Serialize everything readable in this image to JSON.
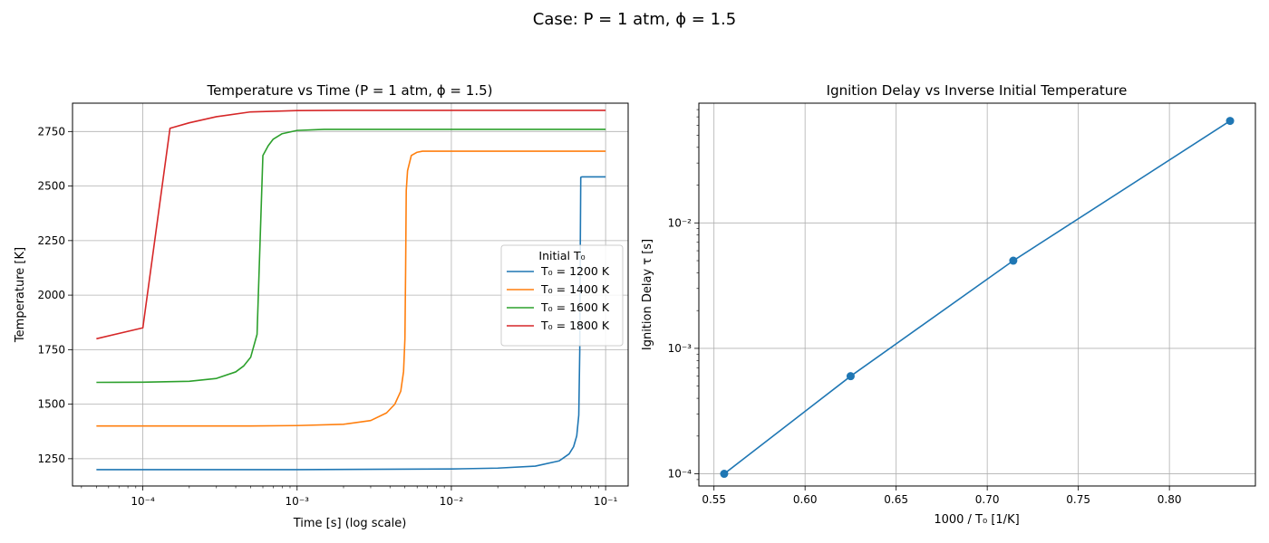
{
  "figure": {
    "suptitle": "Case: P = 1 atm, ϕ = 1.5"
  },
  "chart_data": [
    {
      "type": "line",
      "title": "Temperature vs Time (P = 1 atm, ϕ = 1.5)",
      "xlabel": "Time [s] (log scale)",
      "ylabel": "Temperature [K]",
      "xscale": "log",
      "xlim": [
        3.5e-05,
        0.14
      ],
      "ylim": [
        1125,
        2880
      ],
      "xtick_values": [
        0.0001,
        0.001,
        0.01,
        0.1
      ],
      "xtick_labels": [
        "10⁻⁴",
        "10⁻³",
        "10⁻²",
        "10⁻¹"
      ],
      "ytick_values": [
        1250,
        1500,
        1750,
        2000,
        2250,
        2500,
        2750
      ],
      "ytick_labels": [
        "1250",
        "1500",
        "1750",
        "2000",
        "2250",
        "2500",
        "2750"
      ],
      "grid": true,
      "legend": {
        "title": "Initial T₀",
        "position": "center-right"
      },
      "series": [
        {
          "name": "T₀ = 1200 K",
          "color": "#1f77b4",
          "x": [
            5e-05,
            0.001,
            0.01,
            0.02,
            0.035,
            0.05,
            0.058,
            0.062,
            0.065,
            0.067,
            0.068,
            0.0685,
            0.069,
            0.07,
            0.075,
            0.1
          ],
          "y": [
            1200,
            1200,
            1203,
            1207,
            1216,
            1240,
            1272,
            1305,
            1355,
            1450,
            1750,
            2200,
            2540,
            2542,
            2542,
            2542
          ]
        },
        {
          "name": "T₀ = 1400 K",
          "color": "#ff7f0e",
          "x": [
            5e-05,
            0.0005,
            0.001,
            0.002,
            0.003,
            0.0038,
            0.0043,
            0.0047,
            0.0049,
            0.005,
            0.00505,
            0.0051,
            0.0052,
            0.0055,
            0.006,
            0.0065,
            0.008,
            0.1
          ],
          "y": [
            1400,
            1400,
            1402,
            1408,
            1425,
            1460,
            1500,
            1560,
            1650,
            1800,
            2100,
            2480,
            2570,
            2640,
            2655,
            2660,
            2660,
            2660
          ]
        },
        {
          "name": "T₀ = 1600 K",
          "color": "#2ca02c",
          "x": [
            5e-05,
            0.0001,
            0.0002,
            0.0003,
            0.0004,
            0.00045,
            0.0005,
            0.00055,
            0.0006,
            0.00065,
            0.0007,
            0.0008,
            0.001,
            0.0015,
            0.002,
            0.1
          ],
          "y": [
            1600,
            1601,
            1605,
            1618,
            1648,
            1675,
            1715,
            1820,
            2640,
            2685,
            2715,
            2740,
            2755,
            2760,
            2760,
            2760
          ]
        },
        {
          "name": "T₀ = 1800 K",
          "color": "#d62728",
          "x": [
            5e-05,
            0.0001,
            0.00015,
            0.0002,
            0.0003,
            0.0005,
            0.001,
            0.002,
            0.1
          ],
          "y": [
            1800,
            1850,
            2765,
            2790,
            2818,
            2840,
            2846,
            2847,
            2847
          ]
        }
      ]
    },
    {
      "type": "line",
      "title": "Ignition Delay vs Inverse Initial Temperature",
      "xlabel": "1000 / T₀ [1/K]",
      "ylabel": "Ignition Delay τ [s]",
      "yscale": "log",
      "xlim": [
        0.5417,
        0.8472
      ],
      "ylim": [
        8e-05,
        0.09
      ],
      "xtick_values": [
        0.55,
        0.6,
        0.65,
        0.7,
        0.75,
        0.8
      ],
      "xtick_labels": [
        "0.55",
        "0.60",
        "0.65",
        "0.70",
        "0.75",
        "0.80"
      ],
      "ytick_values": [
        0.0001,
        0.001,
        0.01
      ],
      "ytick_labels": [
        "10⁻⁴",
        "10⁻³",
        "10⁻²"
      ],
      "grid": true,
      "markers": true,
      "series": [
        {
          "color": "#1f77b4",
          "x": [
            0.5556,
            0.625,
            0.7143,
            0.8333
          ],
          "y": [
            0.0001,
            0.0006,
            0.005,
            0.065
          ]
        }
      ]
    }
  ]
}
